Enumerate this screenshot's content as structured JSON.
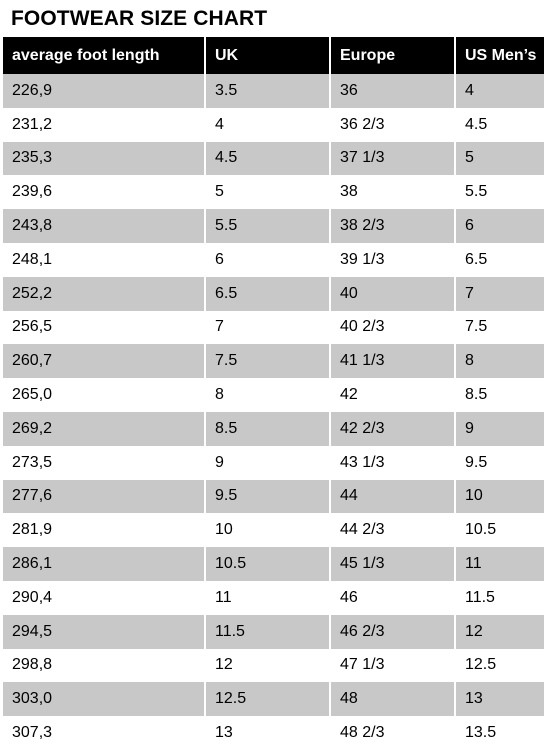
{
  "title": "FOOTWEAR SIZE CHART",
  "colors": {
    "header_bg": "#000000",
    "header_text": "#ffffff",
    "shaded_row": "#c8c8c8"
  },
  "table": {
    "headers": [
      "average foot length",
      "UK",
      "Europe",
      "US Men’s"
    ],
    "rows": [
      [
        "226,9",
        "3.5",
        "36",
        "4"
      ],
      [
        "231,2",
        "4",
        "36 2/3",
        "4.5"
      ],
      [
        "235,3",
        "4.5",
        "37 1/3",
        "5"
      ],
      [
        "239,6",
        "5",
        "38",
        "5.5"
      ],
      [
        "243,8",
        "5.5",
        "38 2/3",
        "6"
      ],
      [
        "248,1",
        "6",
        "39 1/3",
        "6.5"
      ],
      [
        "252,2",
        "6.5",
        "40",
        "7"
      ],
      [
        "256,5",
        "7",
        "40 2/3",
        "7.5"
      ],
      [
        "260,7",
        "7.5",
        "41 1/3",
        "8"
      ],
      [
        "265,0",
        "8",
        "42",
        "8.5"
      ],
      [
        "269,2",
        "8.5",
        "42 2/3",
        "9"
      ],
      [
        "273,5",
        "9",
        "43 1/3",
        "9.5"
      ],
      [
        "277,6",
        "9.5",
        "44",
        "10"
      ],
      [
        "281,9",
        "10",
        "44 2/3",
        "10.5"
      ],
      [
        "286,1",
        "10.5",
        "45 1/3",
        "11"
      ],
      [
        "290,4",
        "11",
        "46",
        "11.5"
      ],
      [
        "294,5",
        "11.5",
        "46 2/3",
        "12"
      ],
      [
        "298,8",
        "12",
        "47 1/3",
        "12.5"
      ],
      [
        "303,0",
        "12.5",
        "48",
        "13"
      ],
      [
        "307,3",
        "13",
        "48 2/3",
        "13.5"
      ]
    ]
  }
}
